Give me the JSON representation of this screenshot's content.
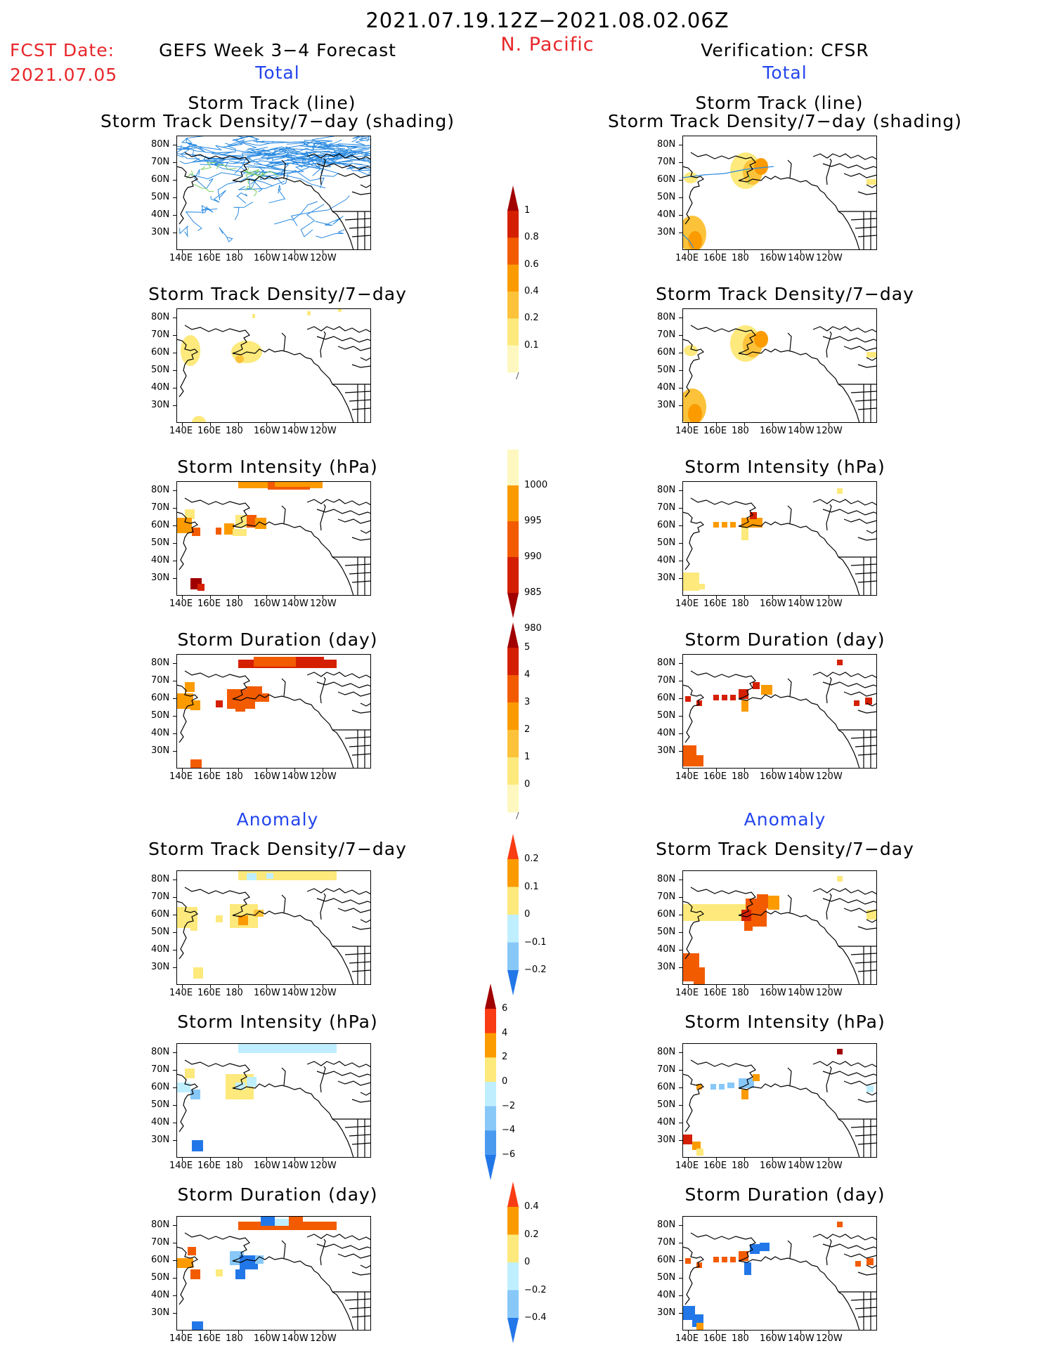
{
  "header": {
    "date_range": "2021.07.19.12Z−2021.08.02.06Z",
    "region": "N. Pacific",
    "fcst_label": "FCST Date:",
    "fcst_date": "2021.07.05",
    "left_title": "GEFS Week 3−4 Forecast",
    "right_title": "Verification: CFSR",
    "left_sub": "Total",
    "right_sub": "Total"
  },
  "section_anomaly": "Anomaly",
  "panel_titles": {
    "track_line": "Storm Track (line)",
    "track_shading": "Storm Track Density/7−day (shading)",
    "density": "Storm Track Density/7−day",
    "intensity": "Storm Intensity (hPa)",
    "duration": "Storm Duration (day)"
  },
  "axes": {
    "lat_labels": [
      "80N",
      "70N",
      "60N",
      "50N",
      "40N",
      "30N"
    ],
    "lon_labels": [
      "140E",
      "160E",
      "180",
      "160W",
      "140W",
      "120W"
    ]
  },
  "colorbars": [
    {
      "id": "density-total",
      "labels": [
        "1",
        "0.8",
        "0.6",
        "0.4",
        "0.2",
        "0.1"
      ],
      "colors": [
        "#a00000",
        "#d42000",
        "#f25b00",
        "#fb9b00",
        "#fcc23a",
        "#fde97c",
        "#fef8c0"
      ],
      "arrow_top": true,
      "arrow_bottom": false
    },
    {
      "id": "intensity-total",
      "labels": [
        "1000",
        "995",
        "990",
        "985",
        "980"
      ],
      "colors": [
        "#fef8c0",
        "#fb9b00",
        "#f25b00",
        "#d42000",
        "#a00000"
      ],
      "arrow_top": false,
      "arrow_bottom": true
    },
    {
      "id": "duration-total",
      "labels": [
        "5",
        "4",
        "3",
        "2",
        "1",
        "0"
      ],
      "colors": [
        "#a00000",
        "#d42000",
        "#f25b00",
        "#fb9b00",
        "#fcc23a",
        "#fde97c",
        "#fef8c0"
      ],
      "arrow_top": true,
      "arrow_bottom": false
    },
    {
      "id": "density-anom",
      "labels": [
        "0.2",
        "0.1",
        "0",
        "−0.1",
        "−0.2"
      ],
      "colors": [
        "#fa3c14",
        "#fb9b00",
        "#fde97c",
        "#bfefff",
        "#88c8f8",
        "#2277e8"
      ],
      "arrow_top": true,
      "arrow_bottom": true
    },
    {
      "id": "intensity-anom",
      "labels": [
        "6",
        "4",
        "2",
        "0",
        "−2",
        "−4",
        "−6"
      ],
      "colors": [
        "#a00000",
        "#fa3c14",
        "#fb9b00",
        "#fde97c",
        "#bfefff",
        "#88c8f8",
        "#4a9af0",
        "#2277e8"
      ],
      "arrow_top": true,
      "arrow_bottom": true
    },
    {
      "id": "duration-anom",
      "labels": [
        "0.4",
        "0.2",
        "0",
        "−0.2",
        "−0.4"
      ],
      "colors": [
        "#fa3c14",
        "#fb9b00",
        "#fde97c",
        "#bfefff",
        "#88c8f8",
        "#2277e8"
      ],
      "arrow_top": true,
      "arrow_bottom": true
    }
  ],
  "colors": {
    "track_line": "#2a8ae0",
    "track_line_alt": "#7fd060",
    "yellow": "#fde97c",
    "light_orange": "#fcc23a",
    "orange": "#fb9b00",
    "dark_orange": "#f25b00",
    "red": "#d42000",
    "dark_red": "#a00000",
    "light_blue": "#bfefff",
    "mid_blue": "#88c8f8",
    "blue": "#2277e8"
  }
}
